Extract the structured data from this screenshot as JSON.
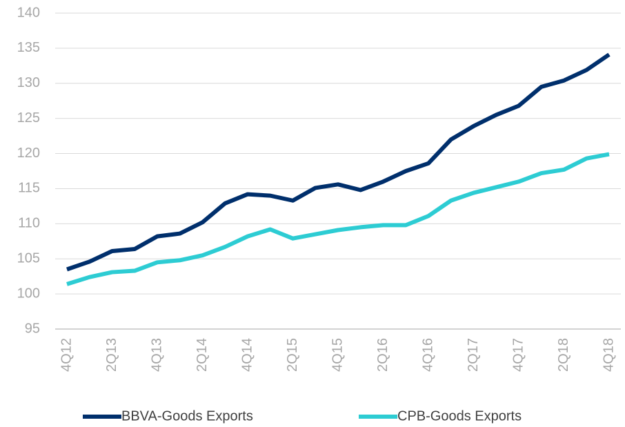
{
  "chart_data": {
    "type": "line",
    "categories": [
      "4Q12",
      null,
      "2Q13",
      null,
      "4Q13",
      null,
      "2Q14",
      null,
      "4Q14",
      null,
      "2Q15",
      null,
      "4Q15",
      null,
      "2Q16",
      null,
      "4Q16",
      null,
      "2Q17",
      null,
      "4Q17",
      null,
      "2Q18",
      null,
      "4Q18"
    ],
    "series": [
      {
        "name": "BBVA-Goods Exports",
        "color": "#002f6c",
        "values": [
          103.5,
          104.6,
          106.1,
          106.4,
          108.2,
          108.6,
          110.2,
          112.9,
          114.2,
          114.0,
          113.3,
          115.1,
          115.6,
          114.8,
          116.0,
          117.5,
          118.6,
          122.0,
          123.9,
          125.5,
          126.8,
          129.5,
          130.4,
          131.9,
          134.1
        ]
      },
      {
        "name": "CPB-Goods Exports",
        "color": "#2dccd3",
        "values": [
          101.4,
          102.4,
          103.1,
          103.3,
          104.5,
          104.8,
          105.5,
          106.7,
          108.2,
          109.2,
          107.9,
          108.5,
          109.1,
          109.5,
          109.8,
          109.8,
          111.1,
          113.3,
          114.4,
          115.2,
          116.0,
          117.2,
          117.7,
          119.3,
          119.9
        ]
      }
    ],
    "ylim": [
      95,
      140
    ],
    "yticks": [
      95,
      100,
      105,
      110,
      115,
      120,
      125,
      130,
      135,
      140
    ],
    "grid": true
  }
}
